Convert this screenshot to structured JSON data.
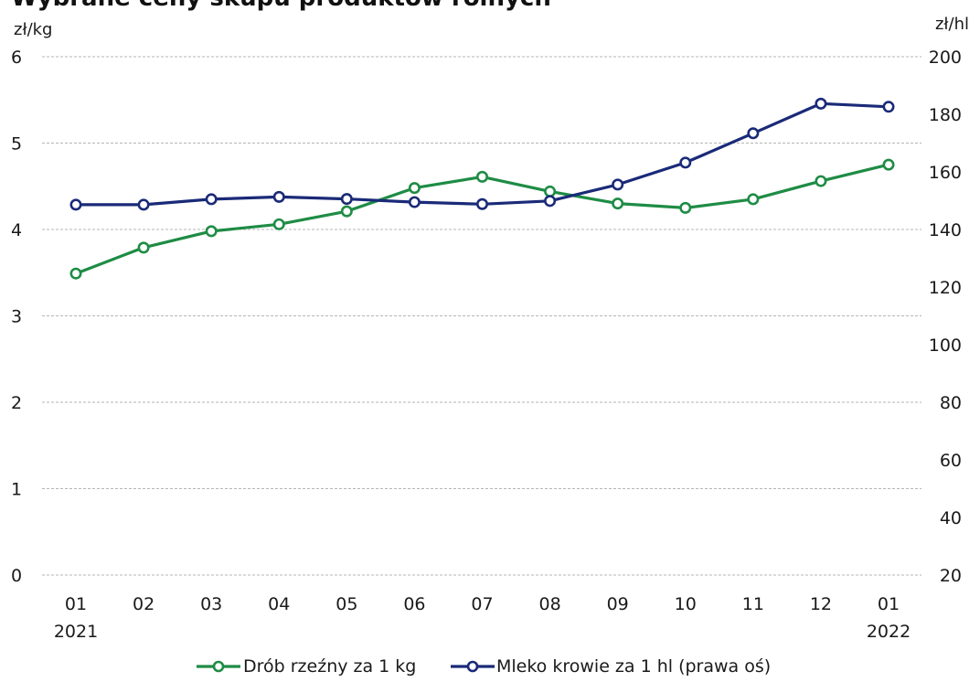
{
  "chart_data": {
    "type": "line",
    "title": "Wybrane ceny skupu produktów rolnych",
    "categories": [
      "01",
      "02",
      "03",
      "04",
      "05",
      "06",
      "07",
      "08",
      "09",
      "10",
      "11",
      "12",
      "01"
    ],
    "category_years": [
      "2021",
      "",
      "",
      "",
      "",
      "",
      "",
      "",
      "",
      "",
      "",
      "",
      "2022"
    ],
    "left_axis": {
      "unit": "zł/kg",
      "ylim": [
        0,
        6
      ],
      "ticks": [
        "0",
        "1",
        "2",
        "3",
        "4",
        "5",
        "6"
      ]
    },
    "right_axis": {
      "unit": "zł/hl",
      "ylim": [
        20,
        200
      ],
      "ticks": [
        "20",
        "40",
        "60",
        "80",
        "100",
        "120",
        "140",
        "160",
        "180",
        "200"
      ]
    },
    "grid": true,
    "legend_position": "bottom",
    "series": [
      {
        "name": "Drób rzeźny za 1 kg",
        "axis": "left",
        "color": "#1e8c45",
        "values": [
          3.49,
          3.79,
          3.98,
          4.06,
          4.21,
          4.48,
          4.61,
          4.44,
          4.3,
          4.25,
          4.35,
          4.56,
          4.75
        ]
      },
      {
        "name": "Mleko krowie za 1 hl (prawa oś)",
        "axis": "right",
        "color": "#1a2a78",
        "values": [
          148.6,
          148.6,
          150.5,
          151.3,
          150.6,
          149.5,
          148.8,
          149.9,
          155.6,
          163.2,
          173.4,
          183.7,
          182.6
        ]
      }
    ]
  }
}
